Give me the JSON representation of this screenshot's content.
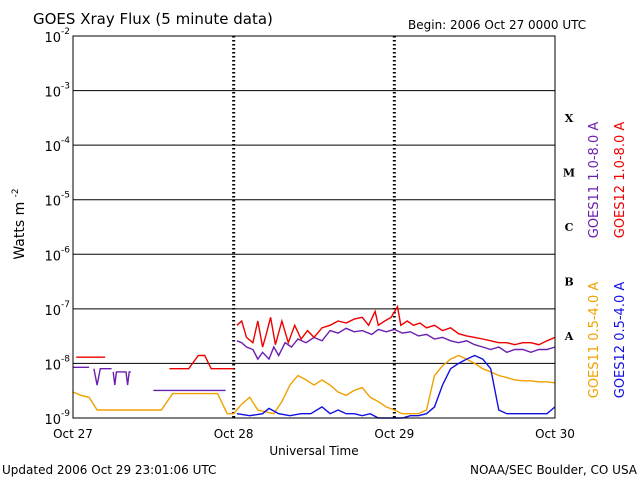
{
  "chart_data": {
    "type": "line",
    "title": "GOES Xray Flux (5 minute data)",
    "begin_text": "Begin:  2006 Oct 27 0000 UTC",
    "xlabel": "Universal Time",
    "ylabel_main": "Watts m",
    "ylabel_exp": "-2",
    "x_unit": "days since 2006 Oct 27 0000 UTC",
    "xlim": [
      0,
      3
    ],
    "x_ticks": [
      {
        "value": 0,
        "label": "Oct 27"
      },
      {
        "value": 1,
        "label": "Oct 28"
      },
      {
        "value": 2,
        "label": "Oct 29"
      },
      {
        "value": 3,
        "label": "Oct 30"
      }
    ],
    "y_scale": "log",
    "ylim": [
      1e-09,
      0.01
    ],
    "y_ticks": [
      {
        "value": 0.01,
        "base": "10",
        "exp": "-2"
      },
      {
        "value": 0.001,
        "base": "10",
        "exp": "-3"
      },
      {
        "value": 0.0001,
        "base": "10",
        "exp": "-4"
      },
      {
        "value": 1e-05,
        "base": "10",
        "exp": "-5"
      },
      {
        "value": 1e-06,
        "base": "10",
        "exp": "-6"
      },
      {
        "value": 1e-07,
        "base": "10",
        "exp": "-7"
      },
      {
        "value": 1e-08,
        "base": "10",
        "exp": "-8"
      },
      {
        "value": 1e-09,
        "base": "10",
        "exp": "-9"
      }
    ],
    "flare_classes": [
      {
        "label": "X",
        "low": 0.0001,
        "high": 0.001
      },
      {
        "label": "M",
        "low": 1e-05,
        "high": 0.0001
      },
      {
        "label": "C",
        "low": 1e-06,
        "high": 1e-05
      },
      {
        "label": "B",
        "low": 1e-07,
        "high": 1e-06
      },
      {
        "label": "A",
        "low": 1e-08,
        "high": 1e-07
      }
    ],
    "legend_right_1": [
      {
        "name": "GOES11 1.0-8.0 A",
        "color": "#6a1fb0"
      },
      {
        "name": "GOES12 1.0-8.0 A",
        "color": "#ee0000"
      }
    ],
    "legend_right_2": [
      {
        "name": "GOES11 0.5-4.0 A",
        "color": "#f0a000"
      },
      {
        "name": "GOES12 0.5-4.0 A",
        "color": "#1010e0"
      }
    ],
    "series": [
      {
        "name": "GOES11 1.0-8.0 A",
        "color": "#6a1fb0",
        "points": [
          [
            0.0,
            8.5e-09
          ],
          [
            0.1,
            8.5e-09
          ],
          [
            0.1,
            null
          ],
          [
            0.13,
            8e-09
          ],
          [
            0.15,
            4e-09
          ],
          [
            0.17,
            8e-09
          ],
          [
            0.24,
            8e-09
          ],
          [
            0.24,
            null
          ],
          [
            0.25,
            7e-09
          ],
          [
            0.26,
            4e-09
          ],
          [
            0.27,
            7e-09
          ],
          [
            0.33,
            7e-09
          ],
          [
            0.34,
            4e-09
          ],
          [
            0.35,
            7e-09
          ],
          [
            0.36,
            7e-09
          ],
          [
            0.37,
            null
          ],
          [
            0.5,
            3.2e-09
          ],
          [
            0.95,
            3.2e-09
          ],
          [
            0.96,
            null
          ],
          [
            1.02,
            2.6e-08
          ],
          [
            1.05,
            2.4e-08
          ],
          [
            1.08,
            2e-08
          ],
          [
            1.12,
            1.8e-08
          ],
          [
            1.15,
            1.2e-08
          ],
          [
            1.18,
            1.6e-08
          ],
          [
            1.22,
            1.2e-08
          ],
          [
            1.25,
            2e-08
          ],
          [
            1.28,
            1.4e-08
          ],
          [
            1.32,
            2.4e-08
          ],
          [
            1.36,
            2e-08
          ],
          [
            1.4,
            2.8e-08
          ],
          [
            1.45,
            2.4e-08
          ],
          [
            1.5,
            3e-08
          ],
          [
            1.55,
            2.6e-08
          ],
          [
            1.6,
            4e-08
          ],
          [
            1.65,
            3.6e-08
          ],
          [
            1.7,
            4.4e-08
          ],
          [
            1.75,
            3.8e-08
          ],
          [
            1.8,
            4e-08
          ],
          [
            1.86,
            3.4e-08
          ],
          [
            1.9,
            4.2e-08
          ],
          [
            1.95,
            3.8e-08
          ],
          [
            2.0,
            4.2e-08
          ],
          [
            2.05,
            3.6e-08
          ],
          [
            2.1,
            3.8e-08
          ],
          [
            2.15,
            3.2e-08
          ],
          [
            2.2,
            3.4e-08
          ],
          [
            2.25,
            2.8e-08
          ],
          [
            2.3,
            3e-08
          ],
          [
            2.35,
            2.6e-08
          ],
          [
            2.4,
            2.4e-08
          ],
          [
            2.45,
            2.6e-08
          ],
          [
            2.5,
            2.2e-08
          ],
          [
            2.55,
            2e-08
          ],
          [
            2.6,
            1.8e-08
          ],
          [
            2.65,
            2e-08
          ],
          [
            2.7,
            1.6e-08
          ],
          [
            2.75,
            1.8e-08
          ],
          [
            2.8,
            1.8e-08
          ],
          [
            2.85,
            1.6e-08
          ],
          [
            2.9,
            1.8e-08
          ],
          [
            2.95,
            1.8e-08
          ],
          [
            3.0,
            2e-08
          ]
        ]
      },
      {
        "name": "GOES12 1.0-8.0 A",
        "color": "#ee0000",
        "points": [
          [
            0.02,
            1.3e-08
          ],
          [
            0.2,
            1.3e-08
          ],
          [
            0.21,
            null
          ],
          [
            0.6,
            8e-09
          ],
          [
            0.72,
            8e-09
          ],
          [
            0.78,
            1.4e-08
          ],
          [
            0.82,
            1.4e-08
          ],
          [
            0.86,
            8e-09
          ],
          [
            1.0,
            8e-09
          ],
          [
            1.01,
            null
          ],
          [
            1.02,
            5e-08
          ],
          [
            1.05,
            6e-08
          ],
          [
            1.08,
            3e-08
          ],
          [
            1.12,
            2.4e-08
          ],
          [
            1.15,
            6e-08
          ],
          [
            1.18,
            2e-08
          ],
          [
            1.2,
            3.2e-08
          ],
          [
            1.23,
            7e-08
          ],
          [
            1.26,
            2.2e-08
          ],
          [
            1.3,
            6e-08
          ],
          [
            1.34,
            2.4e-08
          ],
          [
            1.38,
            5e-08
          ],
          [
            1.42,
            2.8e-08
          ],
          [
            1.46,
            4e-08
          ],
          [
            1.5,
            3e-08
          ],
          [
            1.55,
            4.5e-08
          ],
          [
            1.6,
            5e-08
          ],
          [
            1.65,
            6e-08
          ],
          [
            1.7,
            5.5e-08
          ],
          [
            1.75,
            6.5e-08
          ],
          [
            1.8,
            7e-08
          ],
          [
            1.84,
            5e-08
          ],
          [
            1.88,
            9e-08
          ],
          [
            1.9,
            5e-08
          ],
          [
            1.94,
            6e-08
          ],
          [
            1.98,
            7e-08
          ],
          [
            2.02,
            1.1e-07
          ],
          [
            2.04,
            5e-08
          ],
          [
            2.08,
            6e-08
          ],
          [
            2.12,
            5e-08
          ],
          [
            2.16,
            5.5e-08
          ],
          [
            2.2,
            4.5e-08
          ],
          [
            2.25,
            5e-08
          ],
          [
            2.3,
            4e-08
          ],
          [
            2.35,
            4.5e-08
          ],
          [
            2.4,
            3.5e-08
          ],
          [
            2.45,
            3.2e-08
          ],
          [
            2.5,
            3e-08
          ],
          [
            2.55,
            2.8e-08
          ],
          [
            2.6,
            2.6e-08
          ],
          [
            2.65,
            2.4e-08
          ],
          [
            2.7,
            2.4e-08
          ],
          [
            2.75,
            2.2e-08
          ],
          [
            2.8,
            2.4e-08
          ],
          [
            2.85,
            2.4e-08
          ],
          [
            2.9,
            2.2e-08
          ],
          [
            2.95,
            2.6e-08
          ],
          [
            3.0,
            3e-08
          ]
        ]
      },
      {
        "name": "GOES11 0.5-4.0 A",
        "color": "#f0a000",
        "points": [
          [
            0.0,
            3e-09
          ],
          [
            0.05,
            2.6e-09
          ],
          [
            0.1,
            2.4e-09
          ],
          [
            0.15,
            1.4e-09
          ],
          [
            0.35,
            1.4e-09
          ],
          [
            0.4,
            1.4e-09
          ],
          [
            0.45,
            1.4e-09
          ],
          [
            0.55,
            1.4e-09
          ],
          [
            0.62,
            2.8e-09
          ],
          [
            0.7,
            2.8e-09
          ],
          [
            0.8,
            2.8e-09
          ],
          [
            0.9,
            2.8e-09
          ],
          [
            0.96,
            1.2e-09
          ],
          [
            1.0,
            1.2e-09
          ],
          [
            1.05,
            1.8e-09
          ],
          [
            1.1,
            2.4e-09
          ],
          [
            1.15,
            1.4e-09
          ],
          [
            1.25,
            1.2e-09
          ],
          [
            1.3,
            2e-09
          ],
          [
            1.35,
            4e-09
          ],
          [
            1.4,
            6e-09
          ],
          [
            1.45,
            5e-09
          ],
          [
            1.5,
            4e-09
          ],
          [
            1.55,
            5e-09
          ],
          [
            1.6,
            4e-09
          ],
          [
            1.65,
            3e-09
          ],
          [
            1.7,
            2.6e-09
          ],
          [
            1.75,
            3.2e-09
          ],
          [
            1.8,
            3.6e-09
          ],
          [
            1.85,
            2.4e-09
          ],
          [
            1.9,
            2e-09
          ],
          [
            1.95,
            1.6e-09
          ],
          [
            2.0,
            1.4e-09
          ],
          [
            2.05,
            1.2e-09
          ],
          [
            2.1,
            1.2e-09
          ],
          [
            2.15,
            1.2e-09
          ],
          [
            2.2,
            1.4e-09
          ],
          [
            2.25,
            6e-09
          ],
          [
            2.3,
            9e-09
          ],
          [
            2.35,
            1.2e-08
          ],
          [
            2.4,
            1.4e-08
          ],
          [
            2.45,
            1.2e-08
          ],
          [
            2.5,
            1e-08
          ],
          [
            2.55,
            8e-09
          ],
          [
            2.6,
            7e-09
          ],
          [
            2.65,
            6e-09
          ],
          [
            2.7,
            5.5e-09
          ],
          [
            2.75,
            5e-09
          ],
          [
            2.8,
            4.8e-09
          ],
          [
            2.85,
            4.8e-09
          ],
          [
            2.9,
            4.6e-09
          ],
          [
            2.95,
            4.6e-09
          ],
          [
            3.0,
            4.4e-09
          ]
        ]
      },
      {
        "name": "GOES12 0.5-4.0 A",
        "color": "#1010e0",
        "points": [
          [
            1.02,
            1.2e-09
          ],
          [
            1.1,
            1.1e-09
          ],
          [
            1.18,
            1.2e-09
          ],
          [
            1.22,
            1.5e-09
          ],
          [
            1.28,
            1.2e-09
          ],
          [
            1.35,
            1.1e-09
          ],
          [
            1.42,
            1.2e-09
          ],
          [
            1.48,
            1.2e-09
          ],
          [
            1.55,
            1.6e-09
          ],
          [
            1.6,
            1.2e-09
          ],
          [
            1.65,
            1.4e-09
          ],
          [
            1.7,
            1.2e-09
          ],
          [
            1.75,
            1.2e-09
          ],
          [
            1.8,
            1.1e-09
          ],
          [
            1.85,
            1.2e-09
          ],
          [
            1.9,
            1e-09
          ],
          [
            1.95,
            1e-09
          ],
          [
            2.0,
            1e-09
          ],
          [
            2.05,
            1e-09
          ],
          [
            2.1,
            1.1e-09
          ],
          [
            2.15,
            1.1e-09
          ],
          [
            2.2,
            1.2e-09
          ],
          [
            2.25,
            1.6e-09
          ],
          [
            2.3,
            4e-09
          ],
          [
            2.35,
            8e-09
          ],
          [
            2.4,
            1e-08
          ],
          [
            2.45,
            1.2e-08
          ],
          [
            2.5,
            1.4e-08
          ],
          [
            2.55,
            1.2e-08
          ],
          [
            2.6,
            8e-09
          ],
          [
            2.62,
            4e-09
          ],
          [
            2.65,
            1.4e-09
          ],
          [
            2.7,
            1.2e-09
          ],
          [
            2.75,
            1.2e-09
          ],
          [
            2.8,
            1.2e-09
          ],
          [
            2.85,
            1.2e-09
          ],
          [
            2.9,
            1.2e-09
          ],
          [
            2.95,
            1.2e-09
          ],
          [
            3.0,
            1.6e-09
          ]
        ]
      }
    ]
  },
  "footer": {
    "updated": "Updated 2006 Oct 29 23:01:06 UTC",
    "credit": "NOAA/SEC Boulder, CO USA"
  }
}
